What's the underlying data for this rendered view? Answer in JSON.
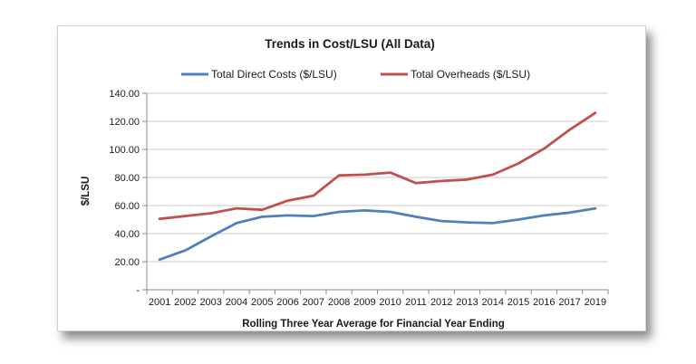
{
  "chart_data": {
    "type": "line",
    "title": "Trends in Cost/LSU (All Data)",
    "xlabel": "Rolling Three Year Average for Financial Year Ending",
    "ylabel": "$/LSU",
    "ylim": [
      0,
      140
    ],
    "yticks": [
      "-",
      "20.00",
      "40.00",
      "60.00",
      "80.00",
      "100.00",
      "120.00",
      "140.00"
    ],
    "x": [
      "2001",
      "2002",
      "2003",
      "2004",
      "2005",
      "2006",
      "2007",
      "2008",
      "2009",
      "2010",
      "2011",
      "2012",
      "2013",
      "2014",
      "2015",
      "2016",
      "2017",
      "2019"
    ],
    "legend_position": "top",
    "grid": "horizontal",
    "series": [
      {
        "name": "Total Direct Costs ($/LSU)",
        "color": "#4f81bd",
        "values": [
          21.5,
          28,
          38,
          47.5,
          52,
          53,
          52.5,
          55.5,
          56.5,
          55.5,
          52,
          49,
          48,
          47.5,
          50,
          53,
          55,
          58
        ]
      },
      {
        "name": "Total Overheads ($/LSU)",
        "color": "#c0504d",
        "values": [
          50.5,
          52.5,
          54.5,
          58,
          57,
          63.5,
          67,
          81.5,
          82,
          83.5,
          76,
          77.5,
          78.5,
          82,
          90,
          100.5,
          114,
          126
        ]
      }
    ]
  }
}
